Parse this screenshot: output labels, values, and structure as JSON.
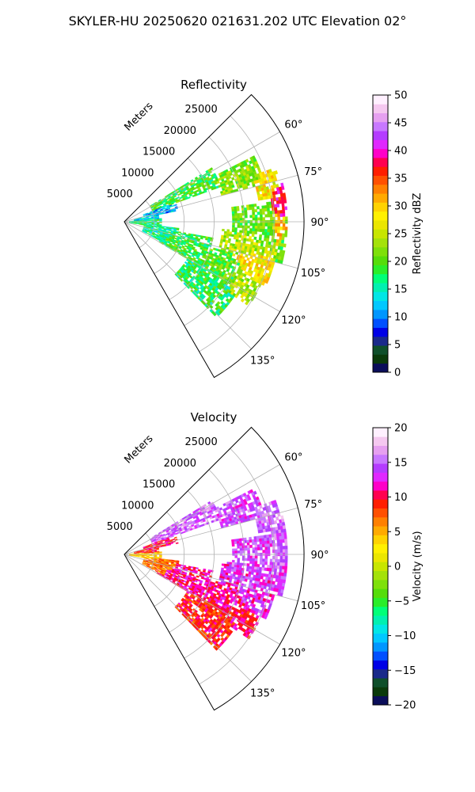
{
  "figure": {
    "title": "SKYLER-HU  20250620  021631.202 UTC Elevation 02°"
  },
  "chart_data": [
    {
      "type": "heatmap",
      "projection": "polar-sector",
      "title": "Reflectivity",
      "radial_label": "Meters",
      "radial_ticks": [
        5000,
        10000,
        15000,
        20000,
        25000
      ],
      "radial_tick_labels": [
        "5000",
        "10000",
        "15000",
        "20000",
        "25000"
      ],
      "radial_range": [
        0,
        30000
      ],
      "azimuth_range": [
        45,
        150
      ],
      "azimuth_ticks": [
        60,
        75,
        90,
        105,
        120,
        135
      ],
      "azimuth_tick_labels": [
        "60°",
        "75°",
        "90°",
        "105°",
        "120°",
        "135°"
      ],
      "grid": true,
      "colorbar": {
        "label": "Reflectivity dBZ",
        "range": [
          0,
          50
        ],
        "ticks": [
          0,
          5,
          10,
          15,
          20,
          25,
          30,
          35,
          40,
          45,
          50
        ],
        "tick_labels": [
          "0",
          "5",
          "10",
          "15",
          "20",
          "25",
          "30",
          "35",
          "40",
          "45",
          "50"
        ],
        "colors": [
          "#0b0e5a",
          "#0a3a0a",
          "#0f4f2a",
          "#1a2a8a",
          "#0000e6",
          "#0050ff",
          "#0096ff",
          "#00c8ff",
          "#00e6e6",
          "#00f0b0",
          "#00ff78",
          "#2aee2a",
          "#55dd0a",
          "#7ee00a",
          "#a4e20a",
          "#c8e600",
          "#ebe600",
          "#fff000",
          "#ffd200",
          "#ffaa00",
          "#ff8000",
          "#ff5000",
          "#ff1e00",
          "#ff0050",
          "#ff00c8",
          "#e028ff",
          "#b43cff",
          "#c878ff",
          "#e6a0f0",
          "#f5c8f0",
          "#fff0ff"
        ]
      },
      "field": [
        {
          "az": [
            58,
            70
          ],
          "r": [
            5000,
            17000
          ],
          "value": 19
        },
        {
          "az": [
            68,
            78
          ],
          "r": [
            3000,
            9000
          ],
          "value": 11
        },
        {
          "az": [
            74,
            88
          ],
          "r": [
            1500,
            5500
          ],
          "value": 13
        },
        {
          "az": [
            62,
            74
          ],
          "r": [
            16500,
            24000
          ],
          "value": 22
        },
        {
          "az": [
            70,
            80
          ],
          "r": [
            22500,
            26500
          ],
          "value": 28
        },
        {
          "az": [
            76,
            88
          ],
          "r": [
            24500,
            27000
          ],
          "value": 38
        },
        {
          "az": [
            82,
            104
          ],
          "r": [
            18000,
            27000
          ],
          "value": 21
        },
        {
          "az": [
            86,
            98
          ],
          "r": [
            24000,
            27000
          ],
          "value": 30
        },
        {
          "az": [
            94,
            108
          ],
          "r": [
            16000,
            26000
          ],
          "value": 24
        },
        {
          "az": [
            100,
            114
          ],
          "r": [
            19000,
            26000
          ],
          "value": 28
        },
        {
          "az": [
            104,
            112
          ],
          "r": [
            21000,
            24000
          ],
          "value": 35
        },
        {
          "az": [
            100,
            120
          ],
          "r": [
            6000,
            15000
          ],
          "value": 19
        },
        {
          "az": [
            106,
            120
          ],
          "r": [
            14000,
            22000
          ],
          "value": 20
        },
        {
          "az": [
            112,
            124
          ],
          "r": [
            20000,
            25000
          ],
          "value": 24
        },
        {
          "az": [
            118,
            136
          ],
          "r": [
            12000,
            22000
          ],
          "value": 18
        },
        {
          "az": [
            84,
            100
          ],
          "r": [
            500,
            6000
          ],
          "value": 17
        },
        {
          "az": [
            96,
            118
          ],
          "r": [
            3000,
            9000
          ],
          "value": 16
        },
        {
          "az": [
            124,
            134
          ],
          "r": [
            17000,
            20000
          ],
          "value": 19
        }
      ]
    },
    {
      "type": "heatmap",
      "projection": "polar-sector",
      "title": "Velocity",
      "radial_label": "Meters",
      "radial_ticks": [
        5000,
        10000,
        15000,
        20000,
        25000
      ],
      "radial_tick_labels": [
        "5000",
        "10000",
        "15000",
        "20000",
        "25000"
      ],
      "radial_range": [
        0,
        30000
      ],
      "azimuth_range": [
        45,
        150
      ],
      "azimuth_ticks": [
        60,
        75,
        90,
        105,
        120,
        135
      ],
      "azimuth_tick_labels": [
        "60°",
        "75°",
        "90°",
        "105°",
        "120°",
        "135°"
      ],
      "grid": true,
      "colorbar": {
        "label": "Velocity (m/s)",
        "range": [
          -20,
          20
        ],
        "ticks": [
          -20,
          -15,
          -10,
          -5,
          0,
          5,
          10,
          15,
          20
        ],
        "tick_labels": [
          "−20",
          "−15",
          "−10",
          "−5",
          "0",
          "5",
          "10",
          "15",
          "20"
        ],
        "colors": [
          "#0b0e5a",
          "#0a3a0a",
          "#0f4f2a",
          "#1a2a8a",
          "#0000e6",
          "#0050ff",
          "#0096ff",
          "#00c8ff",
          "#00e6e6",
          "#00f0b0",
          "#00ff78",
          "#2aee2a",
          "#55dd0a",
          "#7ee00a",
          "#a4e20a",
          "#c8e600",
          "#ebe600",
          "#fff000",
          "#ffd200",
          "#ffaa00",
          "#ff8000",
          "#ff5000",
          "#ff1e00",
          "#ff0050",
          "#ff00c8",
          "#e028ff",
          "#b43cff",
          "#c878ff",
          "#e6a0f0",
          "#f5c8f0",
          "#fff0ff"
        ]
      },
      "field": [
        {
          "az": [
            58,
            70
          ],
          "r": [
            5000,
            17000
          ],
          "value": 15
        },
        {
          "az": [
            68,
            78
          ],
          "r": [
            3000,
            9000
          ],
          "value": 10
        },
        {
          "az": [
            74,
            88
          ],
          "r": [
            1500,
            5500
          ],
          "value": 9
        },
        {
          "az": [
            62,
            74
          ],
          "r": [
            16500,
            24000
          ],
          "value": 14
        },
        {
          "az": [
            70,
            80
          ],
          "r": [
            22500,
            26500
          ],
          "value": 15
        },
        {
          "az": [
            76,
            88
          ],
          "r": [
            24500,
            27000
          ],
          "value": 15
        },
        {
          "az": [
            82,
            104
          ],
          "r": [
            18000,
            27000
          ],
          "value": 14
        },
        {
          "az": [
            86,
            98
          ],
          "r": [
            24000,
            27000
          ],
          "value": 15
        },
        {
          "az": [
            94,
            108
          ],
          "r": [
            16000,
            26000
          ],
          "value": 13
        },
        {
          "az": [
            100,
            114
          ],
          "r": [
            19000,
            26000
          ],
          "value": 13
        },
        {
          "az": [
            104,
            112
          ],
          "r": [
            21000,
            24000
          ],
          "value": 12
        },
        {
          "az": [
            100,
            120
          ],
          "r": [
            6000,
            15000
          ],
          "value": 11
        },
        {
          "az": [
            106,
            120
          ],
          "r": [
            14000,
            22000
          ],
          "value": 11
        },
        {
          "az": [
            112,
            124
          ],
          "r": [
            20000,
            25000
          ],
          "value": 10
        },
        {
          "az": [
            118,
            136
          ],
          "r": [
            12000,
            22000
          ],
          "value": 9
        },
        {
          "az": [
            84,
            100
          ],
          "r": [
            500,
            6000
          ],
          "value": 4
        },
        {
          "az": [
            96,
            118
          ],
          "r": [
            3000,
            9000
          ],
          "value": 7
        },
        {
          "az": [
            124,
            134
          ],
          "r": [
            17000,
            20000
          ],
          "value": 10
        }
      ]
    }
  ]
}
